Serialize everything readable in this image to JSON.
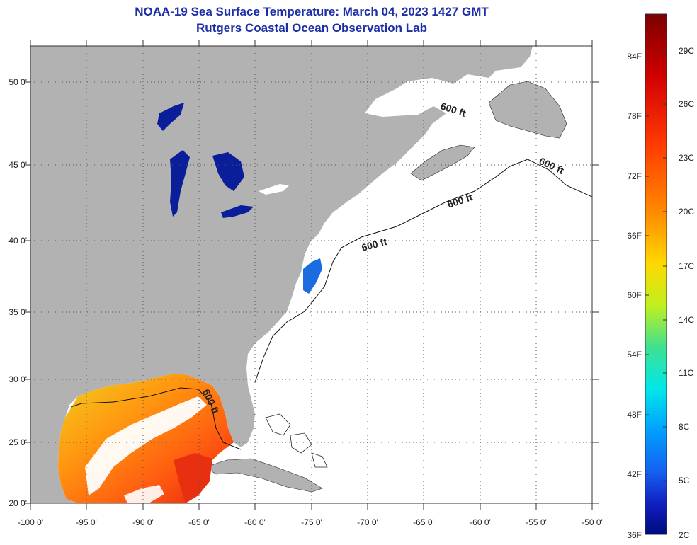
{
  "header": {
    "title": "NOAA-19 Sea Surface Temperature:  March 04, 2023 1427 GMT",
    "subtitle": "Rutgers Coastal Ocean Observation Lab"
  },
  "map": {
    "lon_labels": [
      "-100 0'",
      "-95 0'",
      "-90 0'",
      "-85 0'",
      "-80 0'",
      "-75 0'",
      "-70 0'",
      "-65 0'",
      "-60 0'",
      "-55 0'",
      "-50 0'"
    ],
    "lat_labels": [
      "50 0'",
      "45 0'",
      "40 0'",
      "35 0'",
      "30 0'",
      "25 0'",
      "20 0'"
    ],
    "contour_label": "600 ft",
    "colors": {
      "land": "#b2b2b2",
      "lakes": "#0a1e9a",
      "grid": "#555555"
    }
  },
  "colorbar": {
    "fahrenheit_labels": [
      "84F",
      "78F",
      "72F",
      "66F",
      "60F",
      "54F",
      "48F",
      "42F",
      "36F"
    ],
    "celsius_labels": [
      "29C",
      "26C",
      "23C",
      "20C",
      "17C",
      "14C",
      "11C",
      "8C",
      "5C",
      "2C"
    ],
    "stops": [
      "#7a0000",
      "#d20000",
      "#ff3a00",
      "#ff8a00",
      "#ffd800",
      "#c0f020",
      "#40e090",
      "#00e8e8",
      "#00a0ff",
      "#1460f0",
      "#1020c0",
      "#000a80"
    ]
  }
}
